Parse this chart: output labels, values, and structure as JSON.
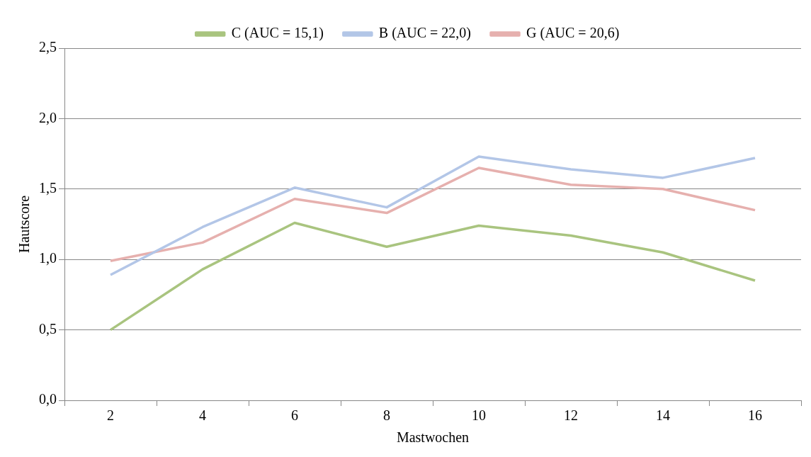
{
  "chart_data": {
    "type": "line",
    "xlabel": "Mastwochen",
    "ylabel": "Hautscore",
    "categories": [
      "2",
      "4",
      "6",
      "8",
      "10",
      "12",
      "14",
      "16"
    ],
    "series": [
      {
        "name": "C (AUC = 15,1)",
        "color": "#a9c47f",
        "values": [
          0.5,
          0.93,
          1.26,
          1.09,
          1.24,
          1.17,
          1.05,
          0.85
        ]
      },
      {
        "name": "B (AUC = 22,0)",
        "color": "#b3c6e7",
        "values": [
          0.89,
          1.23,
          1.51,
          1.37,
          1.73,
          1.64,
          1.58,
          1.72
        ]
      },
      {
        "name": "G (AUC = 20,6)",
        "color": "#e6b0ae",
        "values": [
          0.99,
          1.12,
          1.43,
          1.33,
          1.65,
          1.53,
          1.5,
          1.35
        ]
      }
    ],
    "ylim": [
      0,
      2.5
    ],
    "yticks": [
      {
        "value": 0,
        "label": "0,0"
      },
      {
        "value": 0.5,
        "label": "0,5"
      },
      {
        "value": 1,
        "label": "1,0"
      },
      {
        "value": 1.5,
        "label": "1,5"
      },
      {
        "value": 2,
        "label": "2,0"
      },
      {
        "value": 2.5,
        "label": "2,5"
      }
    ],
    "grid": "y",
    "legend": "top",
    "marker": "none",
    "line_style": "solid"
  }
}
